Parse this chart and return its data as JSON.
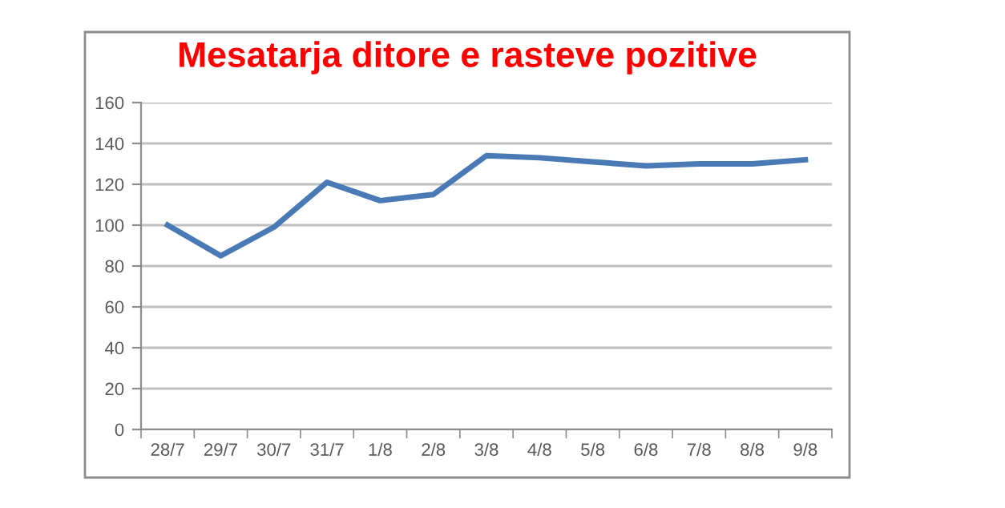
{
  "chart_data": {
    "type": "line",
    "title": "Mesatarja ditore e rasteve pozitive",
    "categories": [
      "28/7",
      "29/7",
      "30/7",
      "31/7",
      "1/8",
      "2/8",
      "3/8",
      "4/8",
      "5/8",
      "6/8",
      "7/8",
      "8/8",
      "9/8"
    ],
    "series": [
      {
        "color": "#4a7ab5",
        "values": [
          100,
          85,
          99,
          121,
          112,
          115,
          134,
          133,
          131,
          129,
          130,
          130,
          132
        ]
      }
    ],
    "ylim": [
      0,
      160
    ],
    "yticks": [
      0,
      20,
      40,
      60,
      80,
      100,
      120,
      140,
      160
    ],
    "grid": "y",
    "legend": false,
    "marker": "none",
    "line_style": "solid"
  }
}
